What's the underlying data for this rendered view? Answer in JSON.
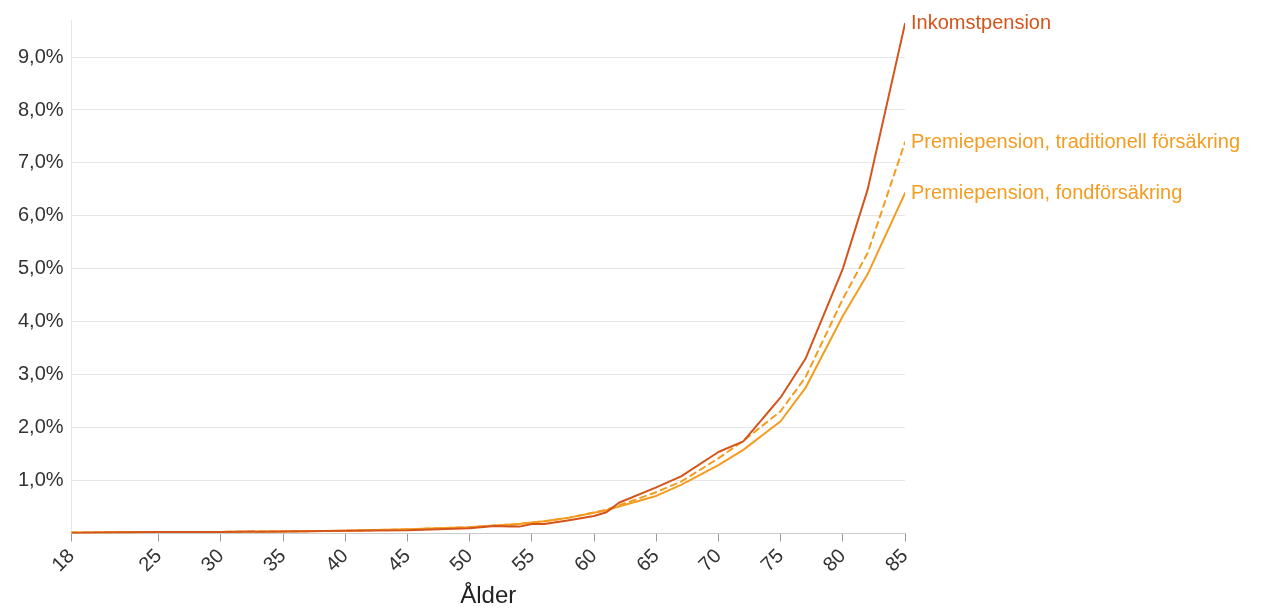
{
  "chart_data": {
    "type": "line",
    "xlabel": "Ålder",
    "x": [
      18,
      20,
      25,
      30,
      35,
      40,
      45,
      50,
      52,
      54,
      55,
      56,
      58,
      60,
      61,
      62,
      65,
      67,
      70,
      72,
      75,
      77,
      80,
      82,
      85
    ],
    "series": [
      {
        "name": "Inkomstpension",
        "color": "#d4541b",
        "line_style": "solid",
        "values": [
          0.01,
          0.02,
          0.03,
          0.03,
          0.04,
          0.05,
          0.06,
          0.1,
          0.14,
          0.13,
          0.18,
          0.18,
          0.25,
          0.33,
          0.4,
          0.58,
          0.87,
          1.08,
          1.54,
          1.74,
          2.57,
          3.3,
          5.0,
          6.5,
          9.63
        ]
      },
      {
        "name": "Premiepension, traditionell försäkring",
        "color": "#f39c1f",
        "line_style": "dashed",
        "values": [
          0.02,
          0.02,
          0.03,
          0.03,
          0.04,
          0.05,
          0.08,
          0.12,
          0.15,
          0.18,
          0.21,
          0.23,
          0.3,
          0.4,
          0.45,
          0.53,
          0.78,
          0.98,
          1.42,
          1.75,
          2.31,
          2.95,
          4.43,
          5.3,
          7.39
        ]
      },
      {
        "name": "Premiepension, fondförsäkring",
        "color": "#f39c1f",
        "line_style": "solid",
        "values": [
          0.02,
          0.02,
          0.03,
          0.03,
          0.04,
          0.05,
          0.08,
          0.12,
          0.15,
          0.18,
          0.21,
          0.23,
          0.3,
          0.39,
          0.44,
          0.51,
          0.71,
          0.92,
          1.29,
          1.58,
          2.12,
          2.75,
          4.11,
          4.9,
          6.43
        ]
      }
    ],
    "xlim": [
      18,
      85
    ],
    "xticks": [
      18,
      25,
      30,
      35,
      40,
      45,
      50,
      55,
      60,
      65,
      70,
      75,
      80,
      85
    ],
    "ylim": [
      0,
      9.7
    ],
    "yticks": [
      {
        "value": 1,
        "label": "1,0%"
      },
      {
        "value": 2,
        "label": "2,0%"
      },
      {
        "value": 3,
        "label": "3,0%"
      },
      {
        "value": 4,
        "label": "4,0%"
      },
      {
        "value": 5,
        "label": "5,0%"
      },
      {
        "value": 6,
        "label": "6,0%"
      },
      {
        "value": 7,
        "label": "7,0%"
      },
      {
        "value": 8,
        "label": "8,0%"
      },
      {
        "value": 9,
        "label": "9,0%"
      }
    ],
    "grid": "y",
    "legend": false,
    "marker": "none"
  }
}
